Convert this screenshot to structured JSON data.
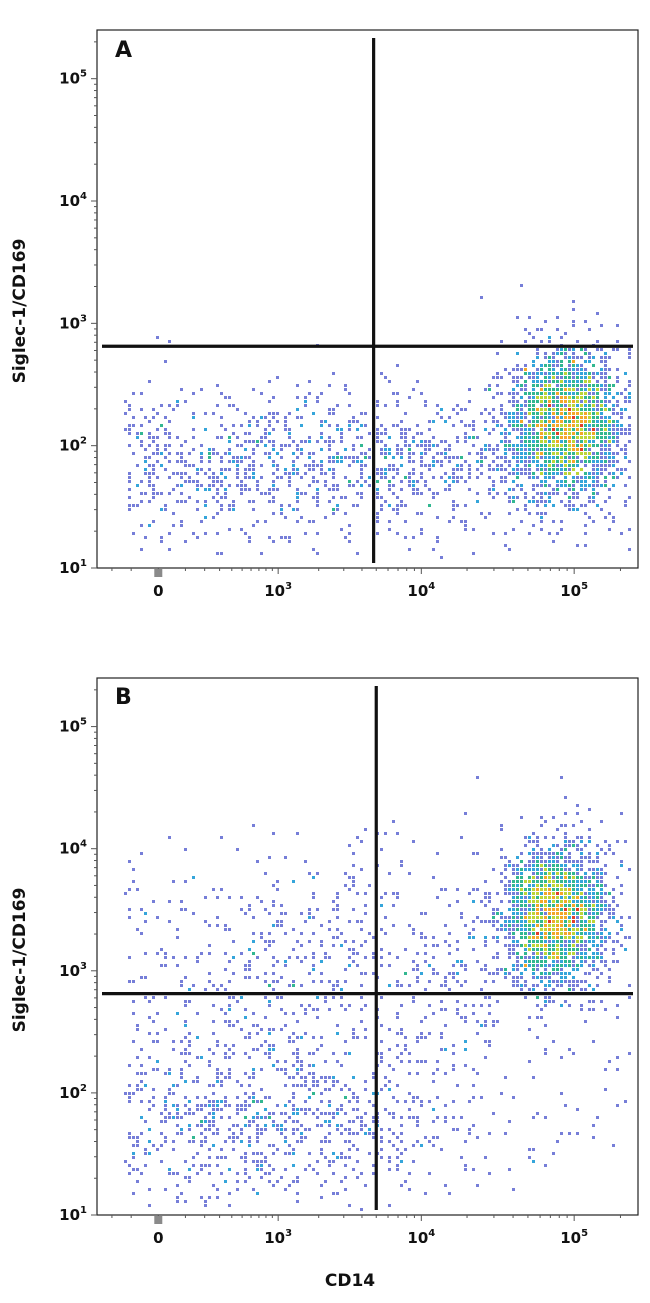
{
  "chart_data": [
    {
      "type": "scatter",
      "subtype": "flow-cytometry density dot plot",
      "panel_label": "A",
      "xlabel": "",
      "ylabel": "Siglec-1/CD169",
      "x_scale": "biexponential",
      "y_scale": "log",
      "x_ticks": [
        {
          "value": 0,
          "label": "0"
        },
        {
          "value": 1000,
          "label": "10",
          "exp": "3"
        },
        {
          "value": 10000,
          "label": "10",
          "exp": "4"
        },
        {
          "value": 100000,
          "label": "10",
          "exp": "5"
        }
      ],
      "y_ticks": [
        {
          "value": 10,
          "label": "10",
          "exp": "1"
        },
        {
          "value": 100,
          "label": "10",
          "exp": "2"
        },
        {
          "value": 1000,
          "label": "10",
          "exp": "3"
        },
        {
          "value": 10000,
          "label": "10",
          "exp": "4"
        },
        {
          "value": 100000,
          "label": "10",
          "exp": "5"
        }
      ],
      "xlim": [
        -300,
        260000
      ],
      "ylim": [
        10,
        250000
      ],
      "gates": {
        "x": 4800,
        "y": 650
      },
      "populations": [
        {
          "name": "",
          "center": [
            90000,
            150
          ],
          "spread": [
            0.18,
            0.3
          ],
          "weight": 0.6
        },
        {
          "name": "",
          "center": [
            150,
            70
          ],
          "spread": [
            0.7,
            0.3
          ],
          "weight": 0.3
        },
        {
          "name": "",
          "center": [
            15000,
            80
          ],
          "spread": [
            0.4,
            0.3
          ],
          "weight": 0.1
        }
      ],
      "density_colors": [
        "#3a3fb0",
        "#6f77d6",
        "#2aa0d8",
        "#27b38a",
        "#b8d32c",
        "#f2a21e",
        "#e2311d"
      ]
    },
    {
      "type": "scatter",
      "subtype": "flow-cytometry density dot plot",
      "panel_label": "B",
      "xlabel": "CD14",
      "ylabel": "Siglec-1/CD169",
      "x_scale": "biexponential",
      "y_scale": "log",
      "x_ticks": [
        {
          "value": 0,
          "label": "0"
        },
        {
          "value": 1000,
          "label": "10",
          "exp": "3"
        },
        {
          "value": 10000,
          "label": "10",
          "exp": "4"
        },
        {
          "value": 100000,
          "label": "10",
          "exp": "5"
        }
      ],
      "y_ticks": [
        {
          "value": 10,
          "label": "10",
          "exp": "1"
        },
        {
          "value": 100,
          "label": "10",
          "exp": "2"
        },
        {
          "value": 1000,
          "label": "10",
          "exp": "3"
        },
        {
          "value": 10000,
          "label": "10",
          "exp": "4"
        },
        {
          "value": 100000,
          "label": "10",
          "exp": "5"
        }
      ],
      "xlim": [
        -300,
        260000
      ],
      "ylim": [
        10,
        250000
      ],
      "gates": {
        "x": 5000,
        "y": 650
      },
      "populations": [
        {
          "name": "",
          "center": [
            75000,
            2800
          ],
          "spread": [
            0.17,
            0.28
          ],
          "weight": 0.55
        },
        {
          "name": "",
          "center": [
            500,
            60
          ],
          "spread": [
            0.55,
            0.35
          ],
          "weight": 0.25
        },
        {
          "name": "",
          "center": [
            3000,
            1000
          ],
          "spread": [
            0.6,
            0.5
          ],
          "weight": 0.2
        }
      ],
      "density_colors": [
        "#3a3fb0",
        "#6f77d6",
        "#2aa0d8",
        "#27b38a",
        "#b8d32c",
        "#f2a21e",
        "#e2311d"
      ]
    }
  ]
}
